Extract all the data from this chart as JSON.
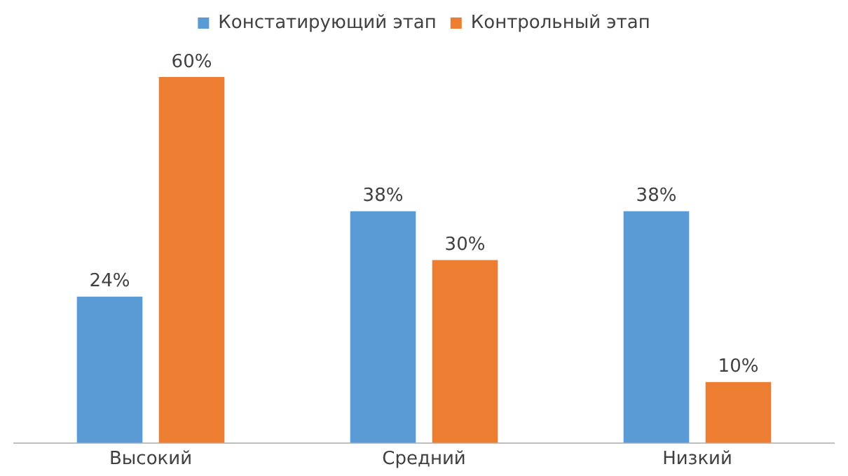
{
  "chart_data": {
    "type": "bar",
    "categories": [
      "Высокий",
      "Средний",
      "Низкий"
    ],
    "series": [
      {
        "name": "Констатирующий этап",
        "color": "#5b9bd5",
        "values": [
          24,
          38,
          38
        ],
        "value_labels": [
          "24%",
          "38%",
          "38%"
        ]
      },
      {
        "name": "Контрольный этап",
        "color": "#ed7d31",
        "values": [
          60,
          30,
          10
        ],
        "value_labels": [
          "60%",
          "30%",
          "10%"
        ]
      }
    ],
    "legend": "top",
    "grid": false
  }
}
